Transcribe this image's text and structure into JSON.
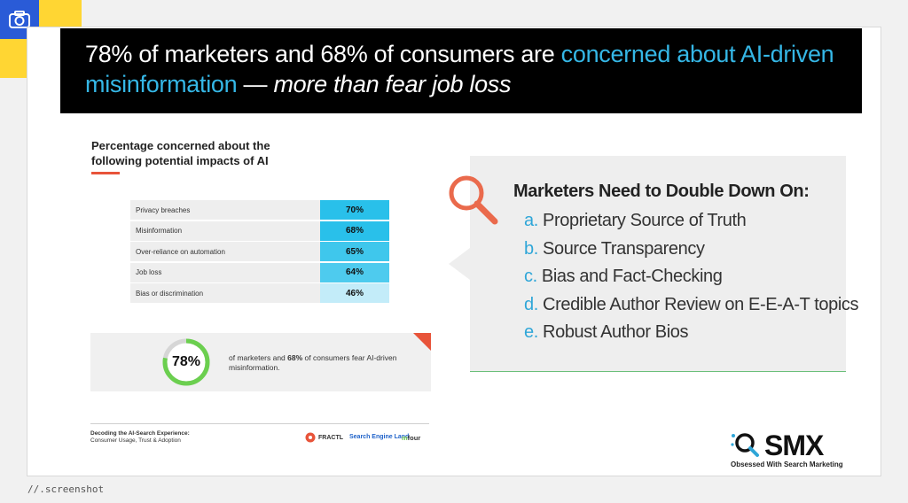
{
  "header": {
    "title_part1": "78% of marketers and 68% of consumers are ",
    "title_highlight": "concerned about AI-driven misinformation",
    "title_part2": " — ",
    "title_italic": "more than fear job loss"
  },
  "chart": {
    "title": "Percentage concerned about the following potential impacts of AI"
  },
  "chart_data": {
    "type": "table",
    "title": "Percentage concerned about the following potential impacts of AI",
    "categories": [
      "Privacy breaches",
      "Misinformation",
      "Over-reliance on automation",
      "Job loss",
      "Bias or discrimination"
    ],
    "values": [
      70,
      68,
      65,
      64,
      46
    ],
    "display": [
      "70%",
      "68%",
      "65%",
      "64%",
      "46%"
    ],
    "colors": [
      "#29c0ea",
      "#29c0ea",
      "#3fc7ec",
      "#4ecbee",
      "#c3ecf9"
    ]
  },
  "stat": {
    "percent_label": "78%",
    "percent_value": 78,
    "text_a": "of marketers and ",
    "text_b": "68%",
    "text_c": " of consumers fear AI-driven misinformation."
  },
  "footer": {
    "report_title": "Decoding the AI-Search Experience:",
    "report_sub": "Consumer Usage, Trust & Adoption",
    "logo_fractl": "FRACTL",
    "logo_sel": "Search Engine Land",
    "logo_mfour_m": "m",
    "logo_mfour_rest": "four"
  },
  "callout": {
    "heading": "Marketers Need to Double Down On:",
    "items": [
      {
        "letter": "a.",
        "text": "Proprietary Source of Truth"
      },
      {
        "letter": "b.",
        "text": "Source Transparency"
      },
      {
        "letter": "c.",
        "text": "Bias and Fact-Checking"
      },
      {
        "letter": "d.",
        "text": "Credible Author Review on E-E-A-T topics"
      },
      {
        "letter": "e.",
        "text": "Robust Author Bios"
      }
    ]
  },
  "brand": {
    "name": "SMX",
    "tagline": "Obsessed With Search Marketing"
  },
  "watermark": "//.screenshot",
  "icons": [
    "camera-icon",
    "magnifier-icon",
    "smx-magnifier-icon",
    "fractl-icon"
  ],
  "colors": {
    "accent_blue": "#35b7e6",
    "accent_red": "#e8543a",
    "ring_green": "#6bcf4f",
    "yellow": "#ffd633",
    "camera_blue": "#2a5bd7"
  }
}
